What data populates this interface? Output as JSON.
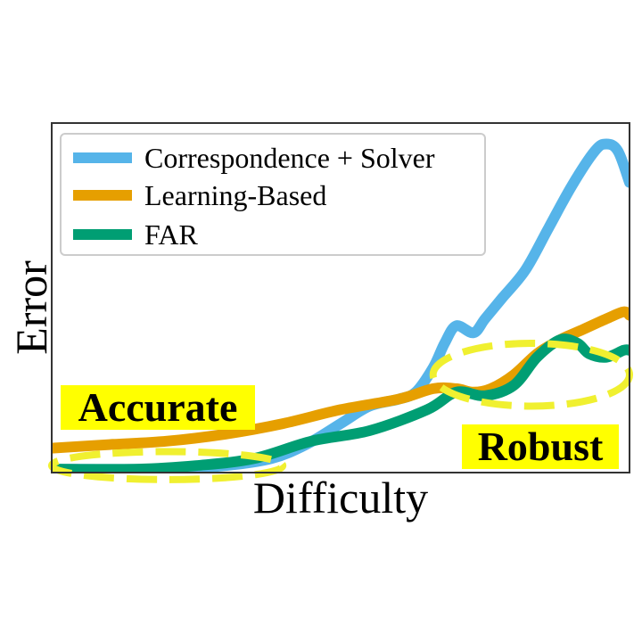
{
  "chart_data": {
    "type": "line",
    "title": "",
    "xlabel": "Difficulty",
    "ylabel": "Error",
    "xlim": [
      0,
      100
    ],
    "ylim": [
      0,
      100
    ],
    "grid": false,
    "ticks": false,
    "legend_position": "top-left",
    "series": [
      {
        "name": "Correspondence + Solver",
        "color": "#56B4E9",
        "x": [
          0,
          20,
          30,
          38,
          44,
          50,
          55,
          60,
          63,
          66,
          68,
          70,
          73,
          75,
          78,
          82,
          86,
          90,
          94,
          96,
          98,
          100
        ],
        "y": [
          1,
          1,
          2,
          4,
          8,
          14,
          19,
          21,
          23,
          30,
          37,
          42,
          40,
          44,
          50,
          58,
          70,
          82,
          92,
          94,
          92,
          83
        ]
      },
      {
        "name": "Learning-Based",
        "color": "#E69F00",
        "x": [
          0,
          10,
          20,
          30,
          40,
          50,
          60,
          66,
          70,
          73,
          76,
          80,
          84,
          88,
          92,
          96,
          99,
          100
        ],
        "y": [
          7,
          8,
          9,
          11,
          14,
          18,
          21,
          24,
          24,
          23,
          24,
          28,
          34,
          38,
          41,
          44,
          46,
          45
        ]
      },
      {
        "name": "FAR",
        "color": "#009E73",
        "x": [
          0,
          15,
          25,
          35,
          45,
          55,
          65,
          70,
          75,
          80,
          84,
          88,
          91,
          93,
          96,
          99,
          100
        ],
        "y": [
          1,
          1,
          2,
          4,
          9,
          12,
          18,
          23,
          22,
          25,
          33,
          38,
          37,
          34,
          33,
          35,
          35
        ]
      }
    ],
    "annotations": [
      {
        "text": "Accurate",
        "ellipse_center": [
          20,
          2
        ],
        "ellipse_radii": [
          20,
          4
        ]
      },
      {
        "text": "Robust",
        "ellipse_center": [
          83,
          28
        ],
        "ellipse_radii": [
          17,
          9
        ]
      }
    ]
  },
  "colors": {
    "highlight": "#FFFF00",
    "ellipse": "#F0F030",
    "axes": "#333333"
  }
}
